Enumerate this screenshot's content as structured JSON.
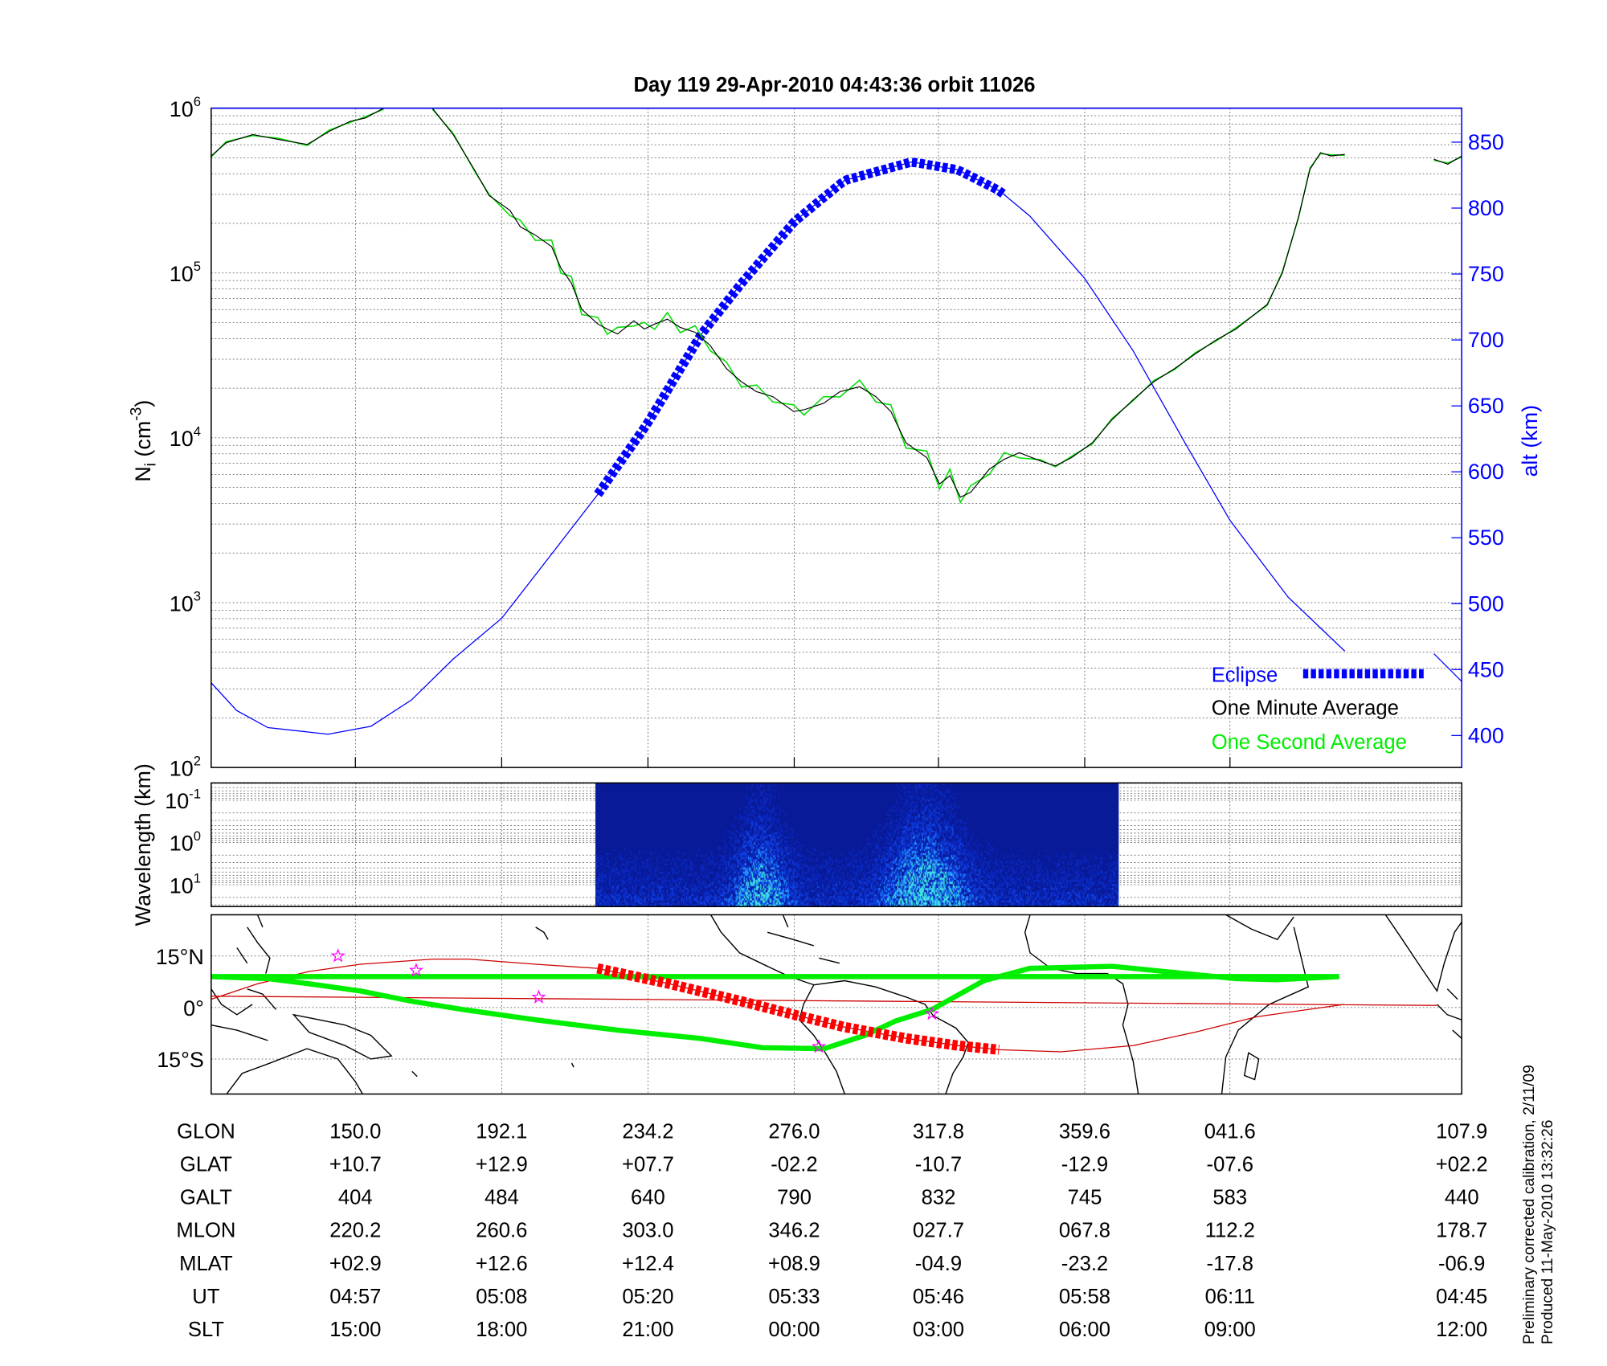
{
  "title": "Day 119  29-Apr-2010 04:43:36   orbit 11026",
  "colors": {
    "altitude": "#0000ff",
    "one_minute": "#000000",
    "one_second": "#00ee00",
    "eclipse_map": "#ff0000",
    "orbit_track": "#cc0000",
    "dip_equator": "#00ee00",
    "stars": "#ff00ff"
  },
  "chart_data": [
    {
      "type": "line",
      "name": "ion density and altitude",
      "xlabel": "",
      "x_units": "minutes from plot start",
      "xlim": [
        0,
        108
      ],
      "left_axis": {
        "label_main": "N",
        "label_sub": "i",
        "label_unit_pre": " (cm",
        "label_sup": "-3",
        "label_unit_post": ")",
        "scale": "log",
        "ylim": [
          100,
          1000000
        ],
        "tick_labels": [
          {
            "base": "10",
            "exp": "6"
          },
          {
            "base": "10",
            "exp": "5"
          },
          {
            "base": "10",
            "exp": "4"
          },
          {
            "base": "10",
            "exp": "3"
          },
          {
            "base": "10",
            "exp": "2"
          }
        ]
      },
      "right_axis": {
        "label": "alt (km)",
        "ylim": [
          376,
          876
        ],
        "tick_labels": [
          "850",
          "800",
          "750",
          "700",
          "650",
          "600",
          "550",
          "500",
          "450",
          "400"
        ]
      },
      "grid": true,
      "legend": {
        "placement": "bottom-right",
        "entries": [
          "Eclipse",
          "One Minute Average",
          "One Second Average"
        ]
      },
      "series": [
        {
          "name": "One Minute Average",
          "axis": "left",
          "log10_values": [
            [
              0,
              5.71
            ],
            [
              1.3,
              5.79
            ],
            [
              3.6,
              5.84
            ],
            [
              5.8,
              5.81
            ],
            [
              8.3,
              5.78
            ],
            [
              10.2,
              5.86
            ],
            [
              12.0,
              5.92
            ],
            [
              13.3,
              5.94
            ],
            [
              14.9,
              6.0
            ],
            null,
            [
              19.1,
              6.0
            ],
            [
              20.9,
              5.84
            ],
            [
              22.7,
              5.63
            ],
            [
              24.0,
              5.47
            ],
            [
              25.8,
              5.38
            ],
            [
              26.7,
              5.28
            ],
            [
              28.0,
              5.23
            ],
            [
              29.4,
              5.16
            ],
            [
              30.2,
              5.03
            ],
            [
              31.1,
              4.94
            ],
            [
              32.0,
              4.78
            ],
            [
              33.4,
              4.69
            ],
            [
              34.2,
              4.66
            ],
            [
              35.1,
              4.63
            ],
            [
              36.5,
              4.71
            ],
            [
              37.4,
              4.66
            ],
            [
              38.3,
              4.69
            ],
            [
              39.4,
              4.72
            ],
            [
              40.5,
              4.67
            ],
            [
              41.8,
              4.64
            ],
            [
              43.1,
              4.56
            ],
            [
              44.5,
              4.42
            ],
            [
              45.8,
              4.34
            ],
            [
              47.1,
              4.28
            ],
            [
              48.5,
              4.25
            ],
            [
              50.3,
              4.16
            ],
            [
              51.2,
              4.17
            ],
            [
              52.9,
              4.21
            ],
            [
              54.3,
              4.28
            ],
            [
              56.0,
              4.31
            ],
            [
              57.4,
              4.25
            ],
            [
              58.7,
              4.16
            ],
            [
              60.0,
              3.97
            ],
            [
              61.8,
              3.88
            ],
            [
              62.9,
              3.72
            ],
            [
              63.8,
              3.77
            ],
            [
              64.7,
              3.64
            ],
            [
              65.6,
              3.67
            ],
            [
              67.2,
              3.81
            ],
            [
              68.5,
              3.87
            ],
            [
              69.8,
              3.91
            ],
            [
              71.6,
              3.86
            ],
            [
              72.9,
              3.83
            ],
            [
              74.3,
              3.88
            ],
            [
              76.1,
              3.97
            ],
            [
              77.8,
              4.11
            ],
            [
              79.6,
              4.23
            ],
            [
              81.4,
              4.34
            ],
            [
              83.2,
              4.42
            ],
            [
              85.0,
              4.51
            ],
            [
              86.7,
              4.59
            ],
            [
              88.5,
              4.66
            ],
            [
              91.2,
              4.81
            ],
            [
              92.5,
              5.0
            ],
            [
              93.9,
              5.34
            ],
            [
              94.9,
              5.63
            ],
            [
              95.8,
              5.73
            ],
            [
              96.7,
              5.71
            ],
            [
              97.9,
              5.72
            ],
            null,
            [
              105.6,
              5.69
            ],
            [
              106.8,
              5.66
            ],
            [
              108,
              5.71
            ]
          ]
        },
        {
          "name": "Altitude",
          "axis": "right",
          "values": [
            [
              0,
              440
            ],
            [
              2.2,
              419
            ],
            [
              4.9,
              406
            ],
            [
              10.1,
              401
            ],
            [
              13.8,
              407
            ],
            [
              17.3,
              427
            ],
            [
              20.9,
              458
            ],
            [
              25.1,
              489
            ],
            [
              28.9,
              532
            ],
            [
              33.4,
              583
            ],
            [
              37.7,
              637
            ],
            [
              42.3,
              704
            ],
            [
              45.8,
              743
            ],
            [
              50.4,
              790
            ],
            [
              54.7,
              821
            ],
            [
              60.5,
              835
            ],
            [
              64.5,
              829
            ],
            [
              68.1,
              813
            ],
            [
              70.7,
              794
            ],
            [
              75.4,
              747
            ],
            [
              79.6,
              692
            ],
            [
              84.1,
              622
            ],
            [
              88.0,
              563
            ],
            [
              93.0,
              505
            ],
            [
              97.9,
              464
            ],
            null,
            [
              105.6,
              462
            ],
            [
              108,
              441
            ]
          ]
        },
        {
          "name": "Eclipse",
          "axis": "right",
          "t_range": [
            33.4,
            68.5
          ]
        }
      ]
    },
    {
      "type": "heatmap",
      "name": "spectrogram",
      "ylabel": "Wavelength (km)",
      "y_scale": "log",
      "tick_labels": [
        {
          "base": "10",
          "exp": "-1"
        },
        {
          "base": "10",
          "exp": "0"
        },
        {
          "base": "10",
          "exp": "1"
        }
      ],
      "data_t_range": [
        33.4,
        78.3
      ]
    },
    {
      "type": "scatter",
      "name": "ground track map",
      "lat_tick_labels": [
        "15°N",
        "0°",
        "15°S"
      ],
      "lon_range": [
        108.5,
        468.5
      ],
      "orbit_track": [
        [
          108.5,
          2.4
        ],
        [
          121.8,
          6.9
        ],
        [
          136.7,
          10.5
        ],
        [
          151.5,
          12.6
        ],
        [
          172.3,
          14.1
        ],
        [
          182.6,
          14.1
        ],
        [
          201.9,
          12.6
        ],
        [
          219.7,
          11.4
        ],
        [
          240.4,
          6.9
        ],
        [
          261.2,
          1.8
        ],
        [
          276.3,
          -2.1
        ],
        [
          290.8,
          -5.7
        ],
        [
          308.6,
          -9.0
        ],
        [
          323.5,
          -11.1
        ],
        [
          335.3,
          -12.3
        ],
        [
          353.1,
          -12.9
        ],
        [
          13.9,
          -11.1
        ],
        [
          31.7,
          -7.2
        ],
        [
          49.5,
          -2.7
        ],
        [
          74.7,
          0.9
        ],
        null,
        [
          101.3,
          0.6
        ],
        [
          108.5,
          3.3
        ]
      ],
      "eclipse_lon_range": [
        219.7,
        335.3
      ],
      "dip_equator": [
        [
          108.5,
          9.0
        ],
        [
          124.8,
          8.4
        ],
        [
          136.7,
          6.9
        ],
        [
          151.5,
          4.8
        ],
        [
          166.3,
          1.8
        ],
        [
          181.1,
          -0.6
        ],
        [
          201.9,
          -3.6
        ],
        [
          225.6,
          -6.6
        ],
        [
          249.3,
          -9.0
        ],
        [
          267.1,
          -11.7
        ],
        [
          284.9,
          -12.0
        ],
        [
          296.7,
          -8.1
        ],
        [
          305.6,
          -3.9
        ],
        [
          316.0,
          -0.6
        ],
        [
          330.9,
          7.8
        ],
        [
          344.2,
          11.4
        ],
        [
          7.9,
          12.0
        ],
        [
          28.7,
          9.9
        ],
        [
          43.5,
          8.4
        ],
        [
          55.4,
          8.1
        ],
        [
          73.2,
          9.0
        ],
        [
          108.5,
          9.0
        ]
      ],
      "stars": [
        [
          145.0,
          15.0
        ],
        [
          167.5,
          10.8
        ],
        [
          202.8,
          3.0
        ],
        [
          283.4,
          -11.4
        ],
        [
          316.0,
          -1.8
        ]
      ]
    }
  ],
  "table": {
    "rows": [
      {
        "label": "GLON",
        "values": [
          "150.0",
          "192.1",
          "234.2",
          "276.0",
          "317.8",
          "359.6",
          "041.6",
          "107.9"
        ]
      },
      {
        "label": "GLAT",
        "values": [
          "+10.7",
          "+12.9",
          "+07.7",
          "-02.2",
          "-10.7",
          "-12.9",
          "-07.6",
          "+02.2"
        ]
      },
      {
        "label": "GALT",
        "values": [
          "404",
          "484",
          "640",
          "790",
          "832",
          "745",
          "583",
          "440"
        ]
      },
      {
        "label": "MLON",
        "values": [
          "220.2",
          "260.6",
          "303.0",
          "346.2",
          "027.7",
          "067.8",
          "112.2",
          "178.7"
        ]
      },
      {
        "label": "MLAT",
        "values": [
          "+02.9",
          "+12.6",
          "+12.4",
          "+08.9",
          "-04.9",
          "-23.2",
          "-17.8",
          "-06.9"
        ]
      },
      {
        "label": "UT",
        "values": [
          "04:57",
          "05:08",
          "05:20",
          "05:33",
          "05:46",
          "05:58",
          "06:11",
          "04:45"
        ]
      },
      {
        "label": "SLT",
        "values": [
          "15:00",
          "18:00",
          "21:00",
          "00:00",
          "03:00",
          "06:00",
          "09:00",
          "12:00"
        ]
      }
    ]
  },
  "footnotes": [
    "Preliminary corrected calibration, 2/11/09",
    "Produced 11-May-2010 13:32:26"
  ]
}
